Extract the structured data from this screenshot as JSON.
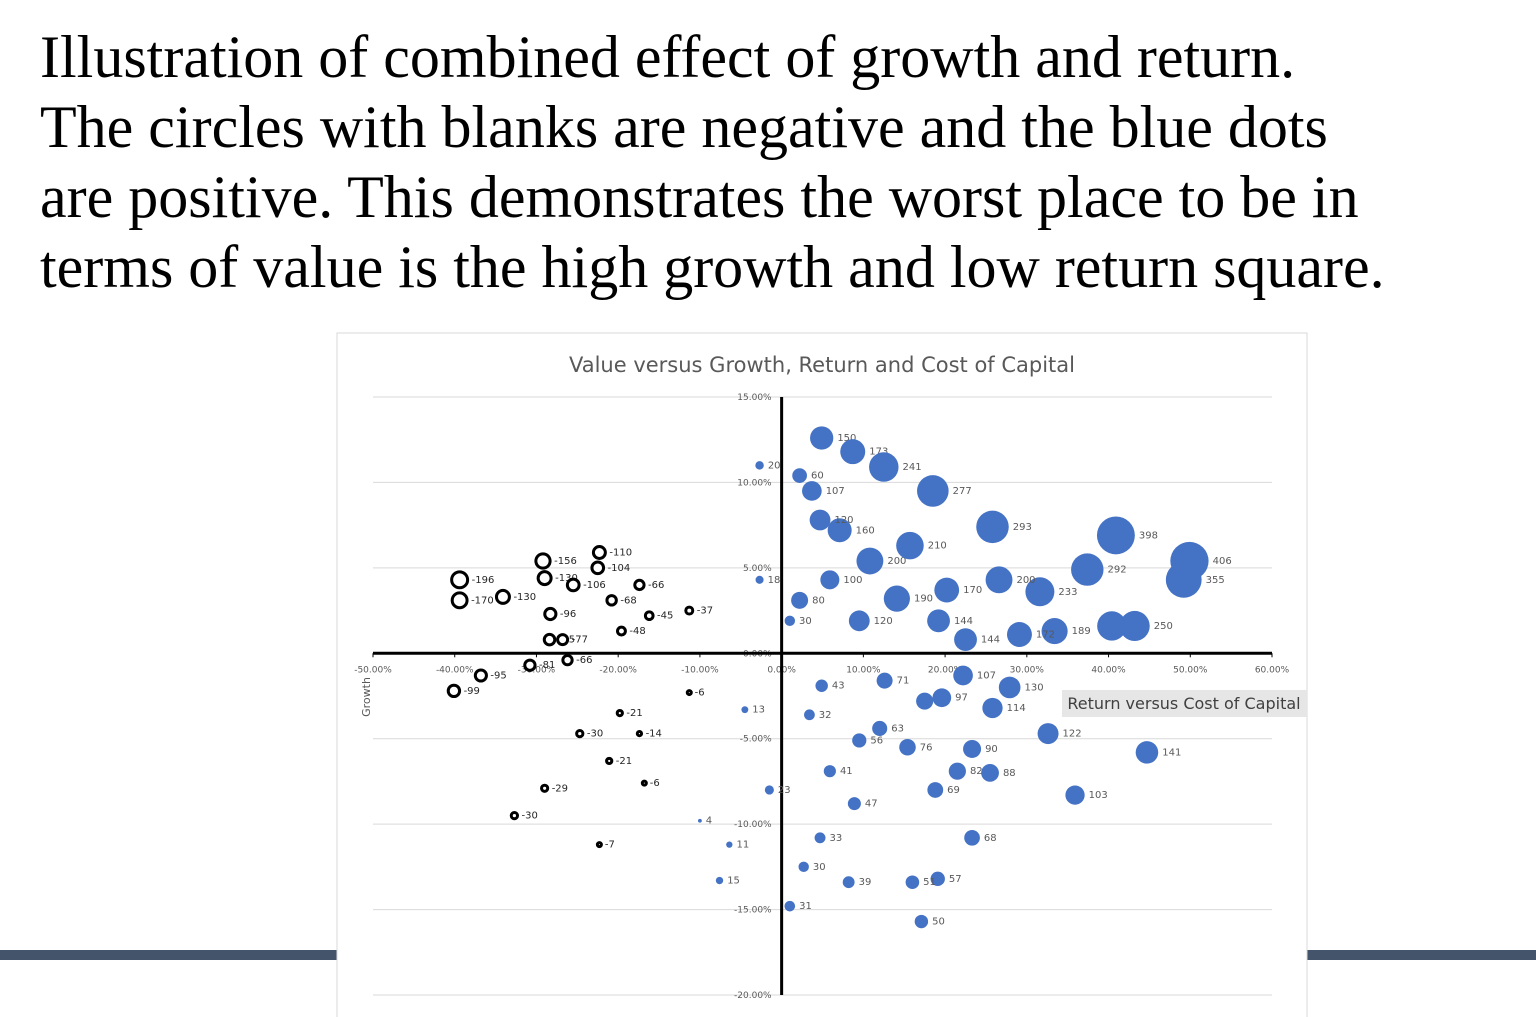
{
  "title_lines": [
    "Illustration of combined effect of growth and return.",
    "The circles with blanks are negative and the blue dots",
    "are positive. This demonstrates the worst place to be in",
    "terms of value is the high growth and low return square."
  ],
  "chart_data": {
    "type": "scatter",
    "title": "Value versus Growth, Return and Cost of Capital",
    "x_label": "Return versus Cost of Capital",
    "y_label": "Growth",
    "xlim": [
      -50,
      60
    ],
    "xticks": [
      {
        "value": -50,
        "label": "-50.00%"
      },
      {
        "value": -40,
        "label": "-40.00%"
      },
      {
        "value": -30,
        "label": "-30.00%"
      },
      {
        "value": -20,
        "label": "-20.00%"
      },
      {
        "value": -10,
        "label": "-10.00%"
      },
      {
        "value": 0,
        "label": "0.00%"
      },
      {
        "value": 10,
        "label": "10.00%"
      },
      {
        "value": 20,
        "label": "20.00%"
      },
      {
        "value": 30,
        "label": "30.00%"
      },
      {
        "value": 40,
        "label": "40.00%"
      },
      {
        "value": 50,
        "label": "50.00%"
      },
      {
        "value": 60,
        "label": "60.00%"
      }
    ],
    "ylim": [
      -20,
      15
    ],
    "yticks": [
      {
        "value": -20,
        "label": "-20.00%"
      },
      {
        "value": -15,
        "label": "-15.00%"
      },
      {
        "value": -10,
        "label": "-10.00%"
      },
      {
        "value": -5,
        "label": "-5.00%"
      },
      {
        "value": 0,
        "label": "0.00%"
      },
      {
        "value": 5,
        "label": "5.00%"
      },
      {
        "value": 10,
        "label": "10.00%"
      },
      {
        "value": 15,
        "label": "15.00%"
      }
    ],
    "grid": true,
    "series": [
      {
        "color": "#4472c4",
        "filled": true,
        "x": [
          4.9,
          8.7,
          12.5,
          18.5,
          25.8,
          40.9,
          49.9,
          49.2,
          37.4,
          31.6,
          40.4,
          43.2,
          32.6,
          44.7,
          35.9,
          25.8,
          27.9,
          23.3,
          25.5,
          23.3,
          19.1,
          17.1,
          22.5,
          19.2,
          14.1,
          10.8,
          15.7,
          7.1,
          4.7,
          2.2,
          9.5,
          5.9,
          20.2,
          26.6,
          17.5,
          19.6,
          22.2,
          12.0,
          9.5,
          18.8,
          8.9,
          15.4,
          4.7,
          8.2,
          2.7,
          1.0,
          16.0,
          5.9,
          3.4,
          4.9,
          12.6,
          2.2,
          3.7,
          33.4,
          29.1,
          21.5,
          -2.7,
          -4.5,
          -6.4,
          -7.6,
          -10.0,
          -1.5,
          1.0,
          -2.7
        ],
        "values": [
          12.6,
          11.8,
          10.9,
          9.5,
          7.4,
          6.9,
          5.4,
          4.3,
          4.9,
          3.6,
          1.6,
          1.6,
          -4.7,
          -5.8,
          -8.3,
          -3.2,
          -2.0,
          -5.6,
          -7.0,
          -10.8,
          -13.2,
          -15.7,
          0.8,
          1.9,
          3.2,
          5.4,
          6.3,
          7.2,
          7.8,
          3.1,
          1.9,
          4.3,
          3.7,
          4.3,
          -2.8,
          -2.6,
          -1.3,
          -4.4,
          -5.1,
          -8.0,
          -8.8,
          -5.5,
          -10.8,
          -13.4,
          -12.5,
          -14.8,
          -13.4,
          -6.9,
          -3.6,
          -1.9,
          -1.6,
          10.4,
          9.5,
          1.3,
          1.1,
          -6.9,
          11.0,
          -3.3,
          -11.2,
          -13.3,
          -9.8,
          -8.0,
          1.9,
          4.3
        ],
        "sizes": [
          150,
          173,
          241,
          277,
          293,
          398,
          406,
          355,
          292,
          233,
          238,
          250,
          122,
          141,
          103,
          114,
          130,
          90,
          88,
          68,
          57,
          50,
          144,
          144,
          190,
          200,
          210,
          160,
          120,
          80,
          120,
          100,
          170,
          200,
          81,
          97,
          107,
          63,
          56,
          69,
          47,
          76,
          33,
          39,
          30,
          31,
          51,
          41,
          32,
          43,
          71,
          60,
          107,
          189,
          172,
          82,
          20,
          13,
          11,
          15,
          4,
          23,
          30,
          18
        ]
      },
      {
        "color": "#000000",
        "filled": false,
        "x": [
          -39.4,
          -39.4,
          -34.1,
          -29.2,
          -29.0,
          -25.5,
          -22.3,
          -22.5,
          -28.3,
          -40.1,
          -36.8,
          -28.4,
          -26.8,
          -20.8,
          -17.4,
          -19.6,
          -30.8,
          -26.2,
          -16.2,
          -11.3,
          -21.1,
          -19.8,
          -17.4,
          -24.7,
          -29.0,
          -32.7,
          -22.3,
          -16.8,
          -11.3
        ],
        "values": [
          4.3,
          3.1,
          3.3,
          5.4,
          4.4,
          4.0,
          5.9,
          5.0,
          2.3,
          -2.2,
          -1.3,
          0.8,
          0.8,
          3.1,
          4.0,
          1.3,
          -0.7,
          -0.4,
          2.2,
          2.5,
          -6.3,
          -3.5,
          -4.7,
          -4.7,
          -7.9,
          -9.5,
          -11.2,
          -7.6,
          -2.3
        ],
        "sizes": [
          -196,
          -170,
          -130,
          -156,
          -130,
          -106,
          -110,
          -104,
          -96,
          -99,
          -95,
          -85,
          -77,
          -68,
          -66,
          -48,
          -81,
          -66,
          -45,
          -37,
          -21,
          -21,
          -14,
          -30,
          -29,
          -30,
          -7,
          -6,
          -6
        ]
      }
    ]
  }
}
